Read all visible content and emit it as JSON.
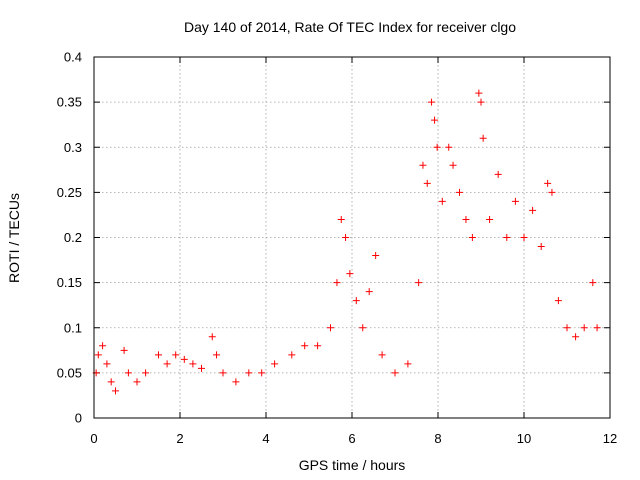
{
  "chart_data": {
    "type": "scatter",
    "title": "Day 140 of 2014, Rate Of TEC Index for receiver clgo",
    "xlabel": "GPS time / hours",
    "ylabel": "ROTI / TECUs",
    "xlim": [
      0,
      12
    ],
    "ylim": [
      0,
      0.4
    ],
    "x_ticks": [
      0,
      2,
      4,
      6,
      8,
      10,
      12
    ],
    "y_ticks": [
      0,
      0.05,
      0.1,
      0.15,
      0.2,
      0.25,
      0.3,
      0.35,
      0.4
    ],
    "x_tick_labels": [
      "0",
      "2",
      "4",
      "6",
      "8",
      "10",
      "12"
    ],
    "y_tick_labels": [
      "0",
      "0.05",
      "0.1",
      "0.15",
      "0.2",
      "0.25",
      "0.3",
      "0.35",
      "0.4"
    ],
    "grid": true,
    "marker": "+",
    "color": "#ff0000",
    "series": [
      {
        "name": "ROTI",
        "points": [
          [
            0.05,
            0.05
          ],
          [
            0.1,
            0.07
          ],
          [
            0.2,
            0.08
          ],
          [
            0.3,
            0.06
          ],
          [
            0.4,
            0.04
          ],
          [
            0.5,
            0.03
          ],
          [
            0.7,
            0.075
          ],
          [
            0.8,
            0.05
          ],
          [
            1.0,
            0.04
          ],
          [
            1.2,
            0.05
          ],
          [
            1.5,
            0.07
          ],
          [
            1.7,
            0.06
          ],
          [
            1.9,
            0.07
          ],
          [
            2.1,
            0.065
          ],
          [
            2.3,
            0.06
          ],
          [
            2.5,
            0.055
          ],
          [
            2.75,
            0.09
          ],
          [
            2.85,
            0.07
          ],
          [
            3.0,
            0.05
          ],
          [
            3.3,
            0.04
          ],
          [
            3.6,
            0.05
          ],
          [
            3.9,
            0.05
          ],
          [
            4.2,
            0.06
          ],
          [
            4.6,
            0.07
          ],
          [
            4.9,
            0.08
          ],
          [
            5.2,
            0.08
          ],
          [
            5.5,
            0.1
          ],
          [
            5.65,
            0.15
          ],
          [
            5.75,
            0.22
          ],
          [
            5.85,
            0.2
          ],
          [
            5.95,
            0.16
          ],
          [
            6.1,
            0.13
          ],
          [
            6.25,
            0.1
          ],
          [
            6.4,
            0.14
          ],
          [
            6.55,
            0.18
          ],
          [
            6.7,
            0.07
          ],
          [
            7.0,
            0.05
          ],
          [
            7.3,
            0.06
          ],
          [
            7.55,
            0.15
          ],
          [
            7.65,
            0.28
          ],
          [
            7.75,
            0.26
          ],
          [
            7.85,
            0.35
          ],
          [
            7.92,
            0.33
          ],
          [
            7.98,
            0.3
          ],
          [
            8.1,
            0.24
          ],
          [
            8.25,
            0.3
          ],
          [
            8.35,
            0.28
          ],
          [
            8.5,
            0.25
          ],
          [
            8.65,
            0.22
          ],
          [
            8.8,
            0.2
          ],
          [
            8.95,
            0.36
          ],
          [
            9.0,
            0.35
          ],
          [
            9.05,
            0.31
          ],
          [
            9.2,
            0.22
          ],
          [
            9.4,
            0.27
          ],
          [
            9.6,
            0.2
          ],
          [
            9.8,
            0.24
          ],
          [
            10.0,
            0.2
          ],
          [
            10.2,
            0.23
          ],
          [
            10.4,
            0.19
          ],
          [
            10.55,
            0.26
          ],
          [
            10.65,
            0.25
          ],
          [
            10.8,
            0.13
          ],
          [
            11.0,
            0.1
          ],
          [
            11.2,
            0.09
          ],
          [
            11.4,
            0.1
          ],
          [
            11.6,
            0.15
          ],
          [
            11.7,
            0.1
          ]
        ]
      }
    ]
  }
}
